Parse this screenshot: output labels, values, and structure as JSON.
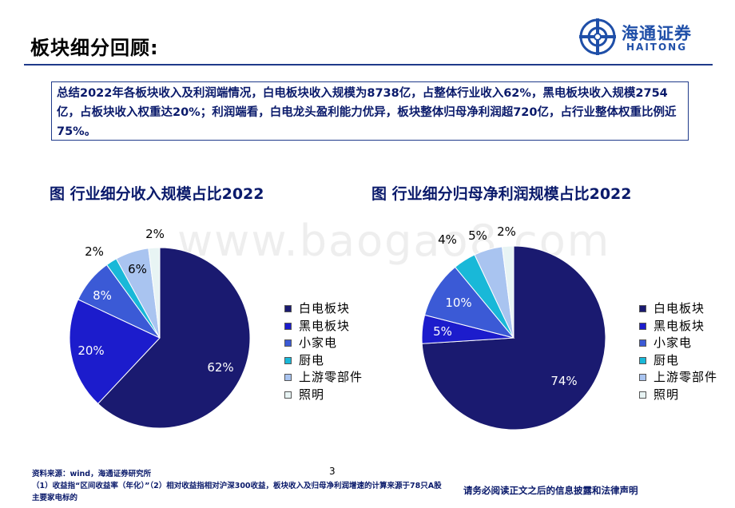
{
  "header": {
    "title": "板块细分回顾:",
    "brand_cn": "海通证券",
    "brand_en": "HAITONG"
  },
  "summary": "总结2022年各板块收入及利润端情况，白电板块收入规模为8738亿，占整体行业收入62%，黑电板块收入规模2754亿，占板块收入权重达20%；利润端看，白电龙头盈利能力优异，板块整体归母净利润超720亿，占行业整体权重比例近75%。",
  "watermark": "www.baogao8.com",
  "chart_data": [
    {
      "type": "pie",
      "title": "图  行业细分收入规模占比2022",
      "categories": [
        "白电板块",
        "黑电板块",
        "小家电",
        "厨电",
        "上游零部件",
        "照明"
      ],
      "values": [
        62,
        20,
        8,
        2,
        6,
        2
      ],
      "data_labels": [
        "62%",
        "20%",
        "8%",
        "2%",
        "6%",
        "2%"
      ],
      "colors": [
        "#1a1a70",
        "#1c1ccc",
        "#3b5ad6",
        "#19b8d8",
        "#a9c4f0",
        "#e8f4f4"
      ],
      "legend_position": "right"
    },
    {
      "type": "pie",
      "title": "图  行业细分归母净利润规模占比2022",
      "categories": [
        "白电板块",
        "黑电板块",
        "小家电",
        "厨电",
        "上游零部件",
        "照明"
      ],
      "values": [
        74,
        5,
        10,
        4,
        5,
        2
      ],
      "data_labels": [
        "74%",
        "5%",
        "10%",
        "4%",
        "5%",
        "2%"
      ],
      "colors": [
        "#1a1a70",
        "#1c1ccc",
        "#3b5ad6",
        "#19b8d8",
        "#a9c4f0",
        "#e8f4f4"
      ],
      "legend_position": "right"
    }
  ],
  "footer": {
    "page_number": "3",
    "source": "资料来源：wind，海通证券研究所",
    "note": "（1）收益指“区间收益率（年化）”（2）相对收益指相对沪深300收益，板块收入及归母净利润增速的计算来源于78只A股主要家电标的",
    "disclaimer": "请务必阅读正文之后的信息披露和法律声明"
  }
}
